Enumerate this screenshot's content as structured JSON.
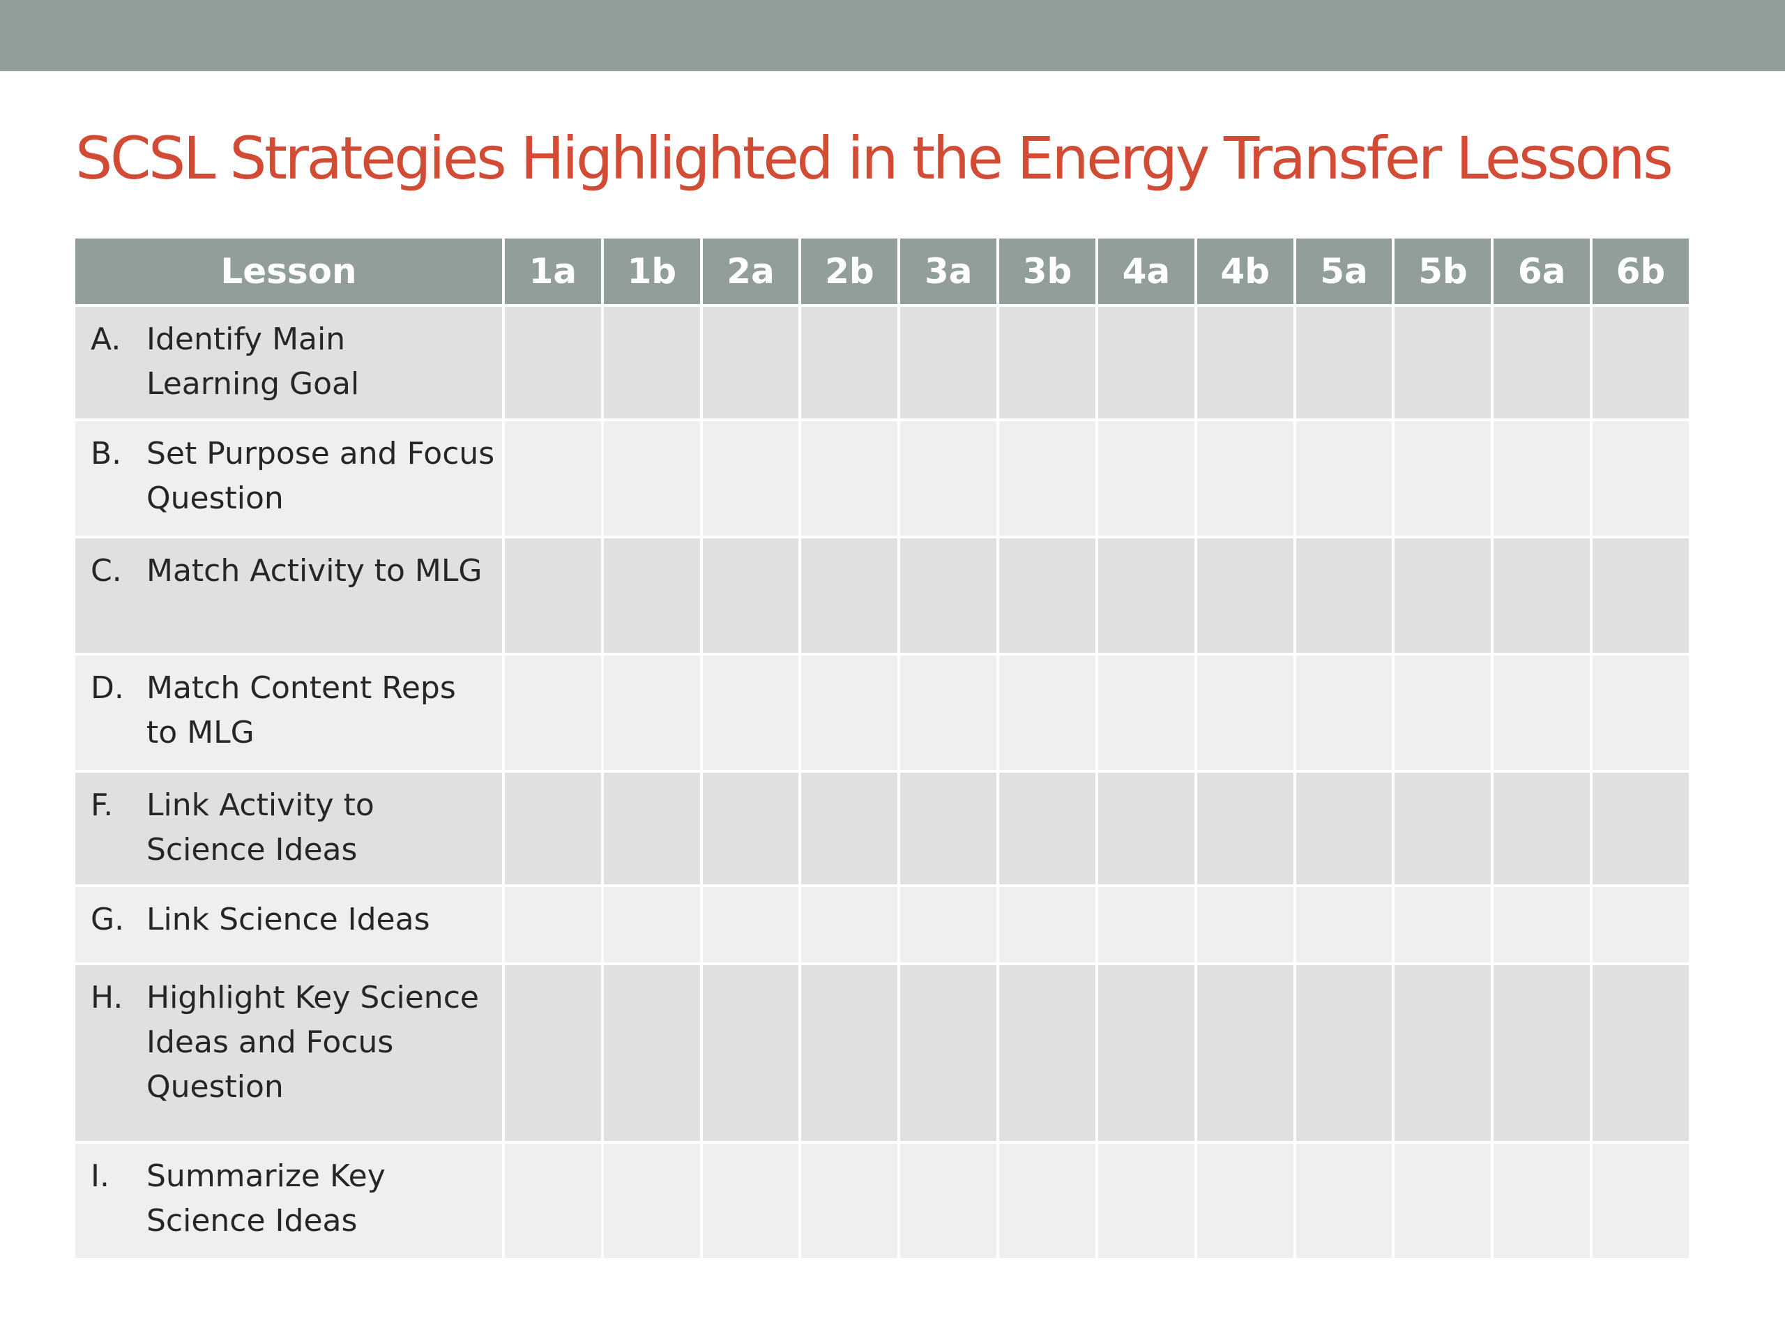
{
  "title": "SCSL Strategies Highlighted in the Energy Transfer Lessons",
  "colors": {
    "band": "#929f98",
    "title": "#d24b35",
    "header_bg": "#929f98",
    "row_odd": "#dfe0df",
    "row_even": "#eeefee"
  },
  "table": {
    "first_header": "Lesson",
    "columns": [
      "1a",
      "1b",
      "2a",
      "2b",
      "3a",
      "3b",
      "4a",
      "4b",
      "5a",
      "5b",
      "6a",
      "6b"
    ],
    "rows": [
      {
        "letter": "A.",
        "text": "Identify Main\nLearning Goal"
      },
      {
        "letter": "B.",
        "text": "Set Purpose and Focus\nQuestion"
      },
      {
        "letter": "C.",
        "text": "Match Activity to MLG"
      },
      {
        "letter": "D.",
        "text": "Match Content Reps\nto MLG"
      },
      {
        "letter": "F.",
        "text": "Link Activity to\nScience Ideas"
      },
      {
        "letter": "G.",
        "text": "Link Science Ideas"
      },
      {
        "letter": "H.",
        "text": "Highlight Key Science\nIdeas and Focus\nQuestion"
      },
      {
        "letter": "I.",
        "text": "Summarize Key\nScience Ideas"
      }
    ]
  }
}
